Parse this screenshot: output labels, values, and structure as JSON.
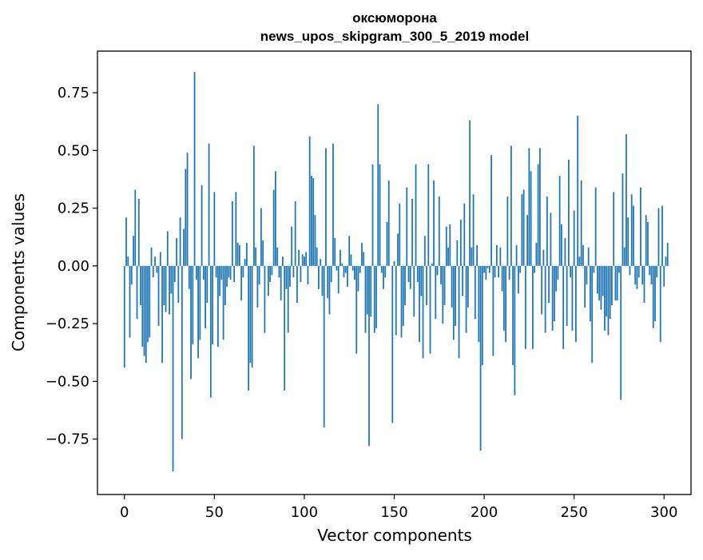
{
  "chart_data": {
    "type": "bar",
    "title": "оксюморона",
    "subtitle": "news_upos_skipgram_300_5_2019 model",
    "xlabel": "Vector components",
    "ylabel": "Components values",
    "xlim": [
      -15,
      315
    ],
    "ylim": [
      -0.99,
      0.93
    ],
    "xticks": [
      0,
      50,
      100,
      150,
      200,
      250,
      300
    ],
    "xtick_labels": [
      "0",
      "50",
      "100",
      "150",
      "200",
      "250",
      "300"
    ],
    "yticks": [
      -0.75,
      -0.5,
      -0.25,
      0.0,
      0.25,
      0.5,
      0.75
    ],
    "ytick_labels": [
      "−0.75",
      "−0.50",
      "−0.25",
      "0.00",
      "0.25",
      "0.50",
      "0.75"
    ],
    "bar_color": "#1f77b4",
    "values": [
      -0.44,
      0.21,
      0.04,
      -0.31,
      -0.08,
      0.13,
      0.33,
      -0.23,
      0.29,
      -0.17,
      -0.35,
      -0.39,
      -0.42,
      -0.33,
      -0.31,
      0.08,
      -0.05,
      0.04,
      -0.03,
      -0.26,
      0.06,
      -0.42,
      -0.17,
      -0.2,
      0.15,
      -0.21,
      -0.12,
      -0.89,
      -0.07,
      0.12,
      -0.16,
      0.21,
      -0.75,
      0.16,
      0.42,
      0.49,
      -0.1,
      -0.49,
      -0.34,
      0.84,
      -0.06,
      -0.4,
      -0.32,
      0.35,
      -0.06,
      -0.27,
      -0.16,
      0.53,
      -0.57,
      -0.34,
      0.32,
      -0.05,
      -0.35,
      -0.13,
      -0.06,
      -0.32,
      -0.17,
      -0.09,
      -0.05,
      -0.06,
      0.28,
      -0.07,
      0.32,
      0.1,
      0.09,
      -0.15,
      -0.05,
      0.03,
      0.1,
      -0.54,
      -0.42,
      -0.44,
      0.52,
      0.08,
      -0.18,
      -0.08,
      0.25,
      0.11,
      -0.29,
      0.0,
      -0.13,
      -0.07,
      -0.04,
      0.33,
      0.41,
      0.08,
      -0.05,
      -0.15,
      0.04,
      -0.54,
      -0.1,
      -0.29,
      -0.09,
      0.17,
      -0.05,
      0.28,
      -0.16,
      0.07,
      -0.07,
      0.05,
      0.04,
      0.06,
      -0.08,
      0.56,
      0.39,
      0.38,
      0.22,
      0.08,
      -0.1,
      0.03,
      -0.13,
      -0.7,
      0.51,
      -0.14,
      -0.21,
      -0.07,
      0.53,
      0.12,
      -0.02,
      -0.12,
      0.07,
      0.01,
      -0.05,
      -0.03,
      -0.09,
      0.13,
      0.05,
      -0.02,
      -0.06,
      -0.38,
      -0.11,
      -0.03,
      0.1,
      0.06,
      -0.29,
      -0.21,
      -0.78,
      -0.22,
      0.44,
      -0.29,
      -0.27,
      0.7,
      0.44,
      -0.03,
      -0.1,
      -0.05,
      0.19,
      0.37,
      0.0,
      -0.68,
      0.02,
      -0.3,
      0.14,
      0.27,
      -0.31,
      -0.26,
      -0.17,
      0.34,
      -0.07,
      -0.1,
      0.29,
      -0.22,
      0.44,
      -0.07,
      -0.33,
      -0.13,
      -0.4,
      0.13,
      -0.17,
      0.44,
      -0.38,
      0.01,
      0.37,
      -0.23,
      -0.04,
      0.3,
      -0.08,
      -0.25,
      -0.17,
      0.17,
      0.08,
      0.18,
      -0.18,
      -0.32,
      -0.26,
      0.11,
      -0.4,
      0.2,
      -0.13,
      0.27,
      -0.29,
      -0.18,
      0.63,
      0.08,
      0.31,
      -0.23,
      0.09,
      -0.33,
      -0.8,
      -0.43,
      -0.03,
      -0.06,
      -0.01,
      -0.03,
      0.48,
      -0.39,
      -0.05,
      0.09,
      -0.05,
      0.08,
      -0.11,
      -0.28,
      -0.33,
      0.3,
      -0.06,
      0.52,
      -0.43,
      -0.56,
      0.09,
      -0.12,
      -0.03,
      0.31,
      0.33,
      -0.36,
      0.22,
      0.51,
      0.41,
      -0.36,
      -0.03,
      0.1,
      0.44,
      0.51,
      -0.21,
      0.07,
      -0.29,
      0.3,
      -0.16,
      0.23,
      -0.28,
      -0.24,
      -0.11,
      -0.06,
      0.39,
      0.18,
      -0.36,
      0.12,
      -0.26,
      0.46,
      -0.05,
      -0.28,
      0.24,
      -0.33,
      0.65,
      0.04,
      0.37,
      0.09,
      -0.18,
      -0.08,
      0.08,
      -0.24,
      -0.42,
      -0.03,
      0.34,
      -0.12,
      -0.15,
      -0.19,
      -0.13,
      -0.28,
      -0.22,
      -0.3,
      -0.23,
      -0.17,
      0.32,
      -0.15,
      -0.15,
      -0.03,
      -0.58,
      0.4,
      0.08,
      0.57,
      0.21,
      -0.04,
      0.31,
      0.26,
      -0.08,
      -0.1,
      -0.05,
      0.34,
      -0.08,
      -0.16,
      0.22,
      0.19,
      -0.04,
      -0.08,
      -0.27,
      -0.24,
      -0.05,
      0.25,
      -0.33,
      0.26,
      -0.09,
      0.04,
      0.1
    ]
  }
}
